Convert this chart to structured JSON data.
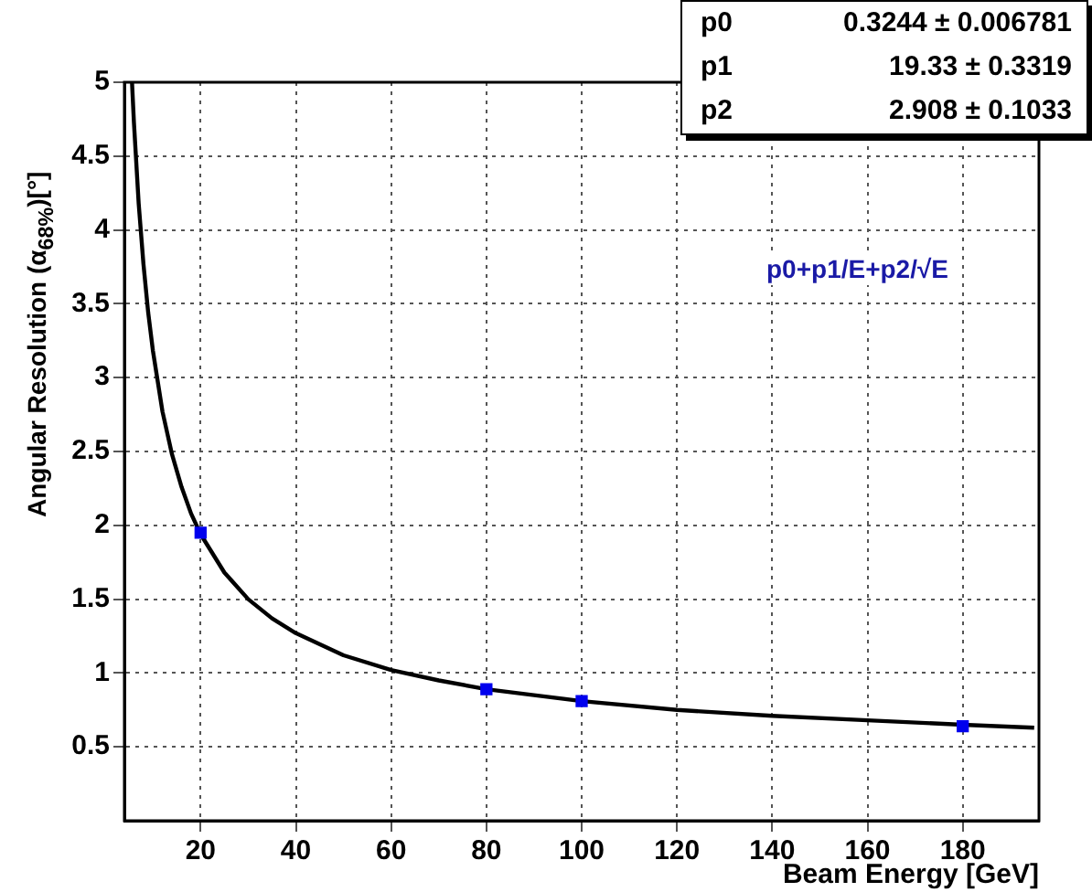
{
  "chart_data": {
    "type": "scatter",
    "xlabel": "Beam Energy [GeV]",
    "ylabel": "Angular Resolution (α$_{68%}$)[°]",
    "xlim": [
      4,
      196
    ],
    "xticks": [
      20,
      40,
      60,
      80,
      100,
      120,
      140,
      160,
      180
    ],
    "ylim": [
      0,
      5
    ],
    "yticks": [
      0.5,
      1,
      1.5,
      2,
      2.5,
      3,
      3.5,
      4,
      4.5,
      5
    ],
    "grid": true,
    "legend": false,
    "line_style": "solid",
    "series": [
      {
        "color": "#0000ee",
        "marker": "square",
        "x": [
          20,
          80,
          100,
          180
        ],
        "values": [
          1.95,
          0.89,
          0.81,
          0.64
        ]
      },
      {
        "type": "line",
        "color": "#000000",
        "marker": "none",
        "x": [
          5.6,
          6,
          7,
          8,
          9,
          10,
          12,
          14,
          16,
          18,
          20,
          25,
          30,
          35,
          40,
          50,
          60,
          70,
          80,
          90,
          100,
          120,
          140,
          160,
          180,
          195
        ],
        "values": [
          5.0,
          4.73,
          4.18,
          3.77,
          3.44,
          3.18,
          2.77,
          2.48,
          2.26,
          2.08,
          1.94,
          1.68,
          1.5,
          1.37,
          1.27,
          1.12,
          1.02,
          0.95,
          0.89,
          0.85,
          0.81,
          0.75,
          0.71,
          0.68,
          0.65,
          0.63
        ]
      }
    ],
    "annotations": [
      "p0 0.3244 ± 0.006781",
      "p1 19.33 ± 0.3319",
      "p2 2.908 ± 0.1033",
      "p0+p1/E+p2/√E"
    ]
  }
}
